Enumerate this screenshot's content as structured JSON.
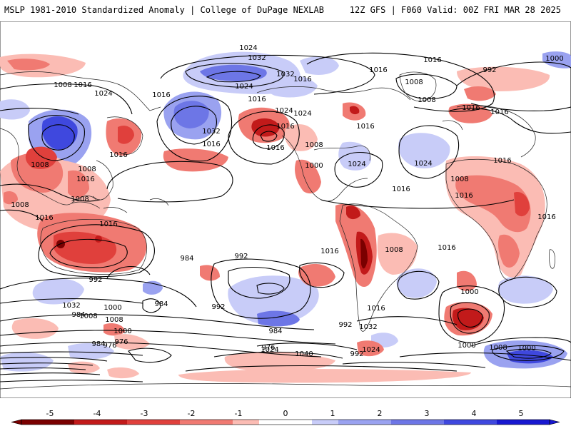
{
  "header": {
    "title_left": "MSLP 1981-2010 Standardized Anomaly | College of DuPage NEXLAB",
    "title_right": "12Z GFS | F060 Valid: 00Z FRI MAR 28 2025"
  },
  "contour_labels": [
    "1024",
    "1032",
    "1016",
    "1024",
    "1008",
    "1016",
    "1024",
    "1032",
    "1016",
    "1016",
    "1024",
    "1016",
    "1016",
    "1008",
    "1032",
    "1016",
    "1016",
    "1024",
    "1016",
    "1008",
    "1016",
    "1024",
    "1016",
    "992",
    "1000",
    "1008",
    "1016",
    "1000",
    "1016",
    "1008",
    "1008",
    "1016",
    "1008",
    "1008",
    "1016",
    "1016",
    "1016",
    "1008",
    "1016",
    "1016",
    "1016",
    "1008",
    "1000",
    "1024",
    "1016",
    "1016",
    "992",
    "984",
    "992",
    "984",
    "1032",
    "1000",
    "1008",
    "1008",
    "1000",
    "992",
    "984",
    "976",
    "984",
    "976",
    "984",
    "976",
    "992",
    "1016",
    "1024",
    "1032",
    "1040",
    "1024",
    "992",
    "1000",
    "1008",
    "1000"
  ],
  "colorbar": {
    "ticks": [
      "-5",
      "-4",
      "-3",
      "-2",
      "-1",
      "0",
      "1",
      "2",
      "3",
      "4",
      "5"
    ],
    "colors": {
      "m5": "#7a0000",
      "m4": "#c21a1a",
      "m3": "#e0403c",
      "m2": "#f07a72",
      "m1": "#fbbcb4",
      "zero": "#ffffff",
      "p1": "#c8ccf8",
      "p2": "#9aa2f0",
      "p3": "#6d76e6",
      "p4": "#3f48de",
      "p5": "#1818d0"
    }
  },
  "colors": {
    "land_outline": "#222222",
    "contour": "#000000",
    "frame": "#333333"
  }
}
